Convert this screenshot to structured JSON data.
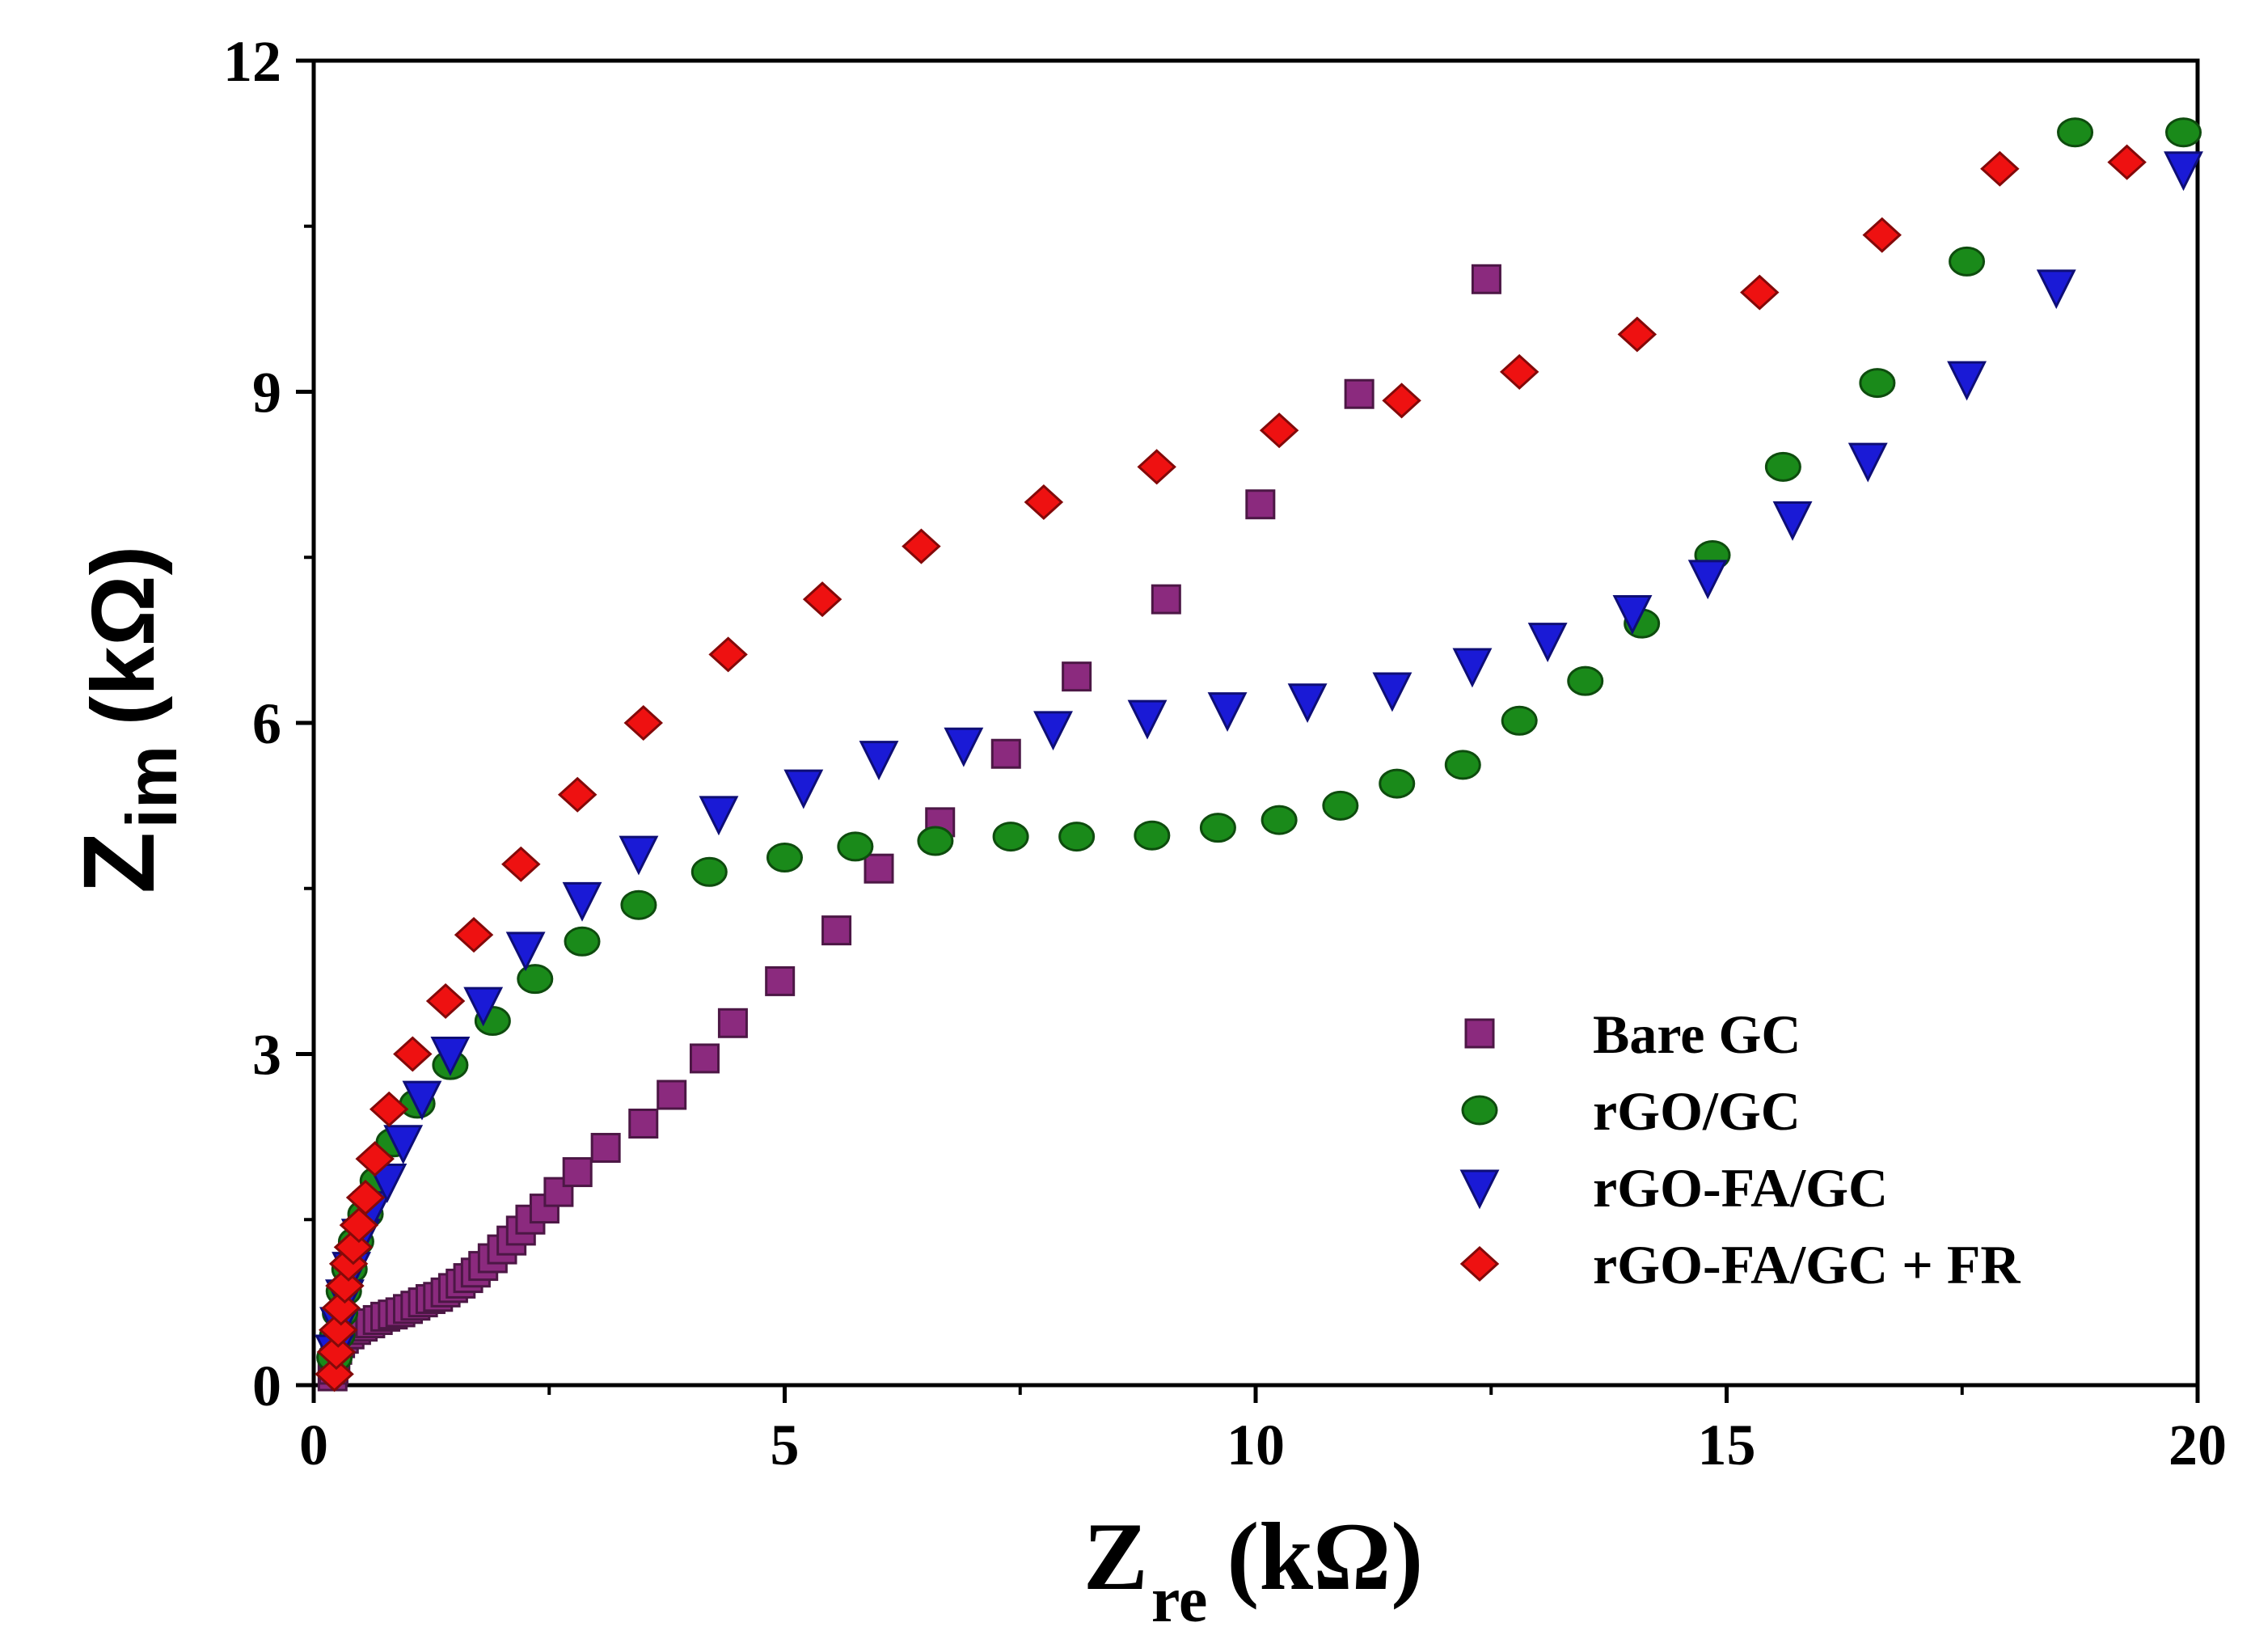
{
  "chart_data": {
    "type": "scatter",
    "x_axis": {
      "title_main": "Z",
      "title_sub": "re",
      "title_unit": "(kΩ)",
      "min": 0,
      "max": 20,
      "ticks": [
        0,
        5,
        10,
        15,
        20
      ],
      "tick_labels": [
        "0",
        "5",
        "10",
        "15",
        "20"
      ]
    },
    "y_axis": {
      "title_main": "Z",
      "title_sub": "im",
      "title_unit": "(kΩ)",
      "min": 0,
      "max": 12,
      "ticks": [
        0,
        3,
        6,
        9,
        12
      ],
      "tick_labels": [
        "0",
        "3",
        "6",
        "9",
        "12"
      ]
    },
    "legend_position": "lower-right",
    "series": [
      {
        "name": "Bare GC",
        "marker": "square",
        "color": "#8b2a7e",
        "x": [
          0.2,
          0.21,
          0.22,
          0.23,
          0.25,
          0.28,
          0.32,
          0.38,
          0.45,
          0.52,
          0.6,
          0.68,
          0.76,
          0.84,
          0.92,
          1.0,
          1.08,
          1.16,
          1.24,
          1.32,
          1.4,
          1.48,
          1.56,
          1.64,
          1.72,
          1.8,
          1.9,
          2.0,
          2.1,
          2.2,
          2.3,
          2.45,
          2.6,
          2.8,
          3.1,
          3.5,
          3.8,
          4.15,
          4.45,
          4.95,
          5.55,
          6.0,
          6.65,
          7.35,
          8.1,
          9.05,
          10.05,
          11.1,
          12.45
        ],
        "y": [
          0.08,
          0.14,
          0.2,
          0.26,
          0.32,
          0.38,
          0.42,
          0.46,
          0.5,
          0.53,
          0.56,
          0.59,
          0.62,
          0.64,
          0.66,
          0.69,
          0.72,
          0.75,
          0.78,
          0.8,
          0.84,
          0.88,
          0.92,
          0.97,
          1.02,
          1.08,
          1.15,
          1.23,
          1.31,
          1.4,
          1.5,
          1.6,
          1.75,
          1.93,
          2.15,
          2.37,
          2.63,
          2.96,
          3.28,
          3.66,
          4.12,
          4.68,
          5.1,
          5.72,
          6.42,
          7.12,
          7.98,
          8.98,
          10.02
        ]
      },
      {
        "name": "rGO/GC",
        "marker": "circle",
        "color": "#1a8a1a",
        "x": [
          0.22,
          0.25,
          0.28,
          0.32,
          0.38,
          0.45,
          0.55,
          0.68,
          0.85,
          1.1,
          1.45,
          1.9,
          2.35,
          2.85,
          3.45,
          4.2,
          5.0,
          5.75,
          6.6,
          7.4,
          8.1,
          8.9,
          9.6,
          10.25,
          10.9,
          11.5,
          12.2,
          12.8,
          13.5,
          14.1,
          14.85,
          15.6,
          16.6,
          17.55,
          18.7,
          19.85
        ],
        "y": [
          0.25,
          0.45,
          0.65,
          0.85,
          1.05,
          1.3,
          1.55,
          1.85,
          2.2,
          2.55,
          2.9,
          3.3,
          3.68,
          4.02,
          4.35,
          4.65,
          4.78,
          4.88,
          4.93,
          4.97,
          4.97,
          4.98,
          5.05,
          5.12,
          5.25,
          5.45,
          5.62,
          6.02,
          6.38,
          6.9,
          7.52,
          8.32,
          9.08,
          10.18,
          11.35,
          11.35
        ]
      },
      {
        "name": "rGO-FA/GC",
        "marker": "triangle-down",
        "color": "#1a1ad6",
        "x": [
          0.22,
          0.27,
          0.33,
          0.4,
          0.5,
          0.62,
          0.78,
          0.95,
          1.15,
          1.45,
          1.8,
          2.25,
          2.85,
          3.45,
          4.3,
          5.2,
          6.0,
          6.9,
          7.85,
          8.85,
          9.7,
          10.55,
          11.45,
          12.3,
          13.1,
          14.0,
          14.8,
          15.7,
          16.5,
          17.55,
          18.5,
          19.85
        ],
        "y": [
          0.3,
          0.55,
          0.8,
          1.05,
          1.35,
          1.6,
          1.85,
          2.2,
          2.6,
          3.0,
          3.45,
          3.95,
          4.4,
          4.82,
          5.18,
          5.42,
          5.68,
          5.8,
          5.95,
          6.05,
          6.12,
          6.2,
          6.3,
          6.52,
          6.75,
          7.0,
          7.32,
          7.85,
          8.38,
          9.12,
          9.95,
          11.02
        ]
      },
      {
        "name": "rGO-FA/GC + FR",
        "marker": "diamond",
        "color": "#ee1111",
        "x": [
          0.22,
          0.24,
          0.26,
          0.29,
          0.33,
          0.37,
          0.42,
          0.48,
          0.55,
          0.65,
          0.8,
          1.05,
          1.4,
          1.7,
          2.2,
          2.8,
          3.5,
          4.4,
          5.4,
          6.45,
          7.75,
          8.95,
          10.25,
          11.55,
          12.8,
          14.05,
          15.35,
          16.65,
          17.9,
          19.25
        ],
        "y": [
          0.1,
          0.3,
          0.5,
          0.7,
          0.9,
          1.1,
          1.25,
          1.45,
          1.7,
          2.05,
          2.5,
          3.0,
          3.48,
          4.08,
          4.72,
          5.35,
          6.0,
          6.62,
          7.12,
          7.6,
          8.0,
          8.32,
          8.65,
          8.92,
          9.18,
          9.52,
          9.9,
          10.42,
          11.02,
          11.08
        ]
      }
    ]
  }
}
